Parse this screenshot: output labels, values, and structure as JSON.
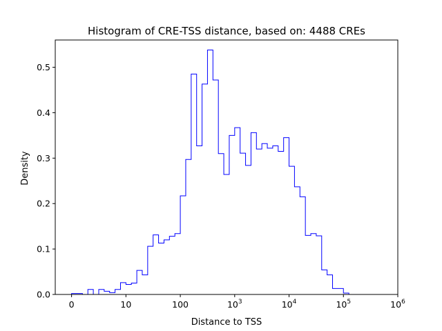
{
  "chart_data": {
    "type": "histogram",
    "title": "Histogram of CRE-TSS distance, based on: 4488 CREs",
    "xlabel": "Distance to TSS",
    "ylabel": "Density",
    "x_scale": "symlog",
    "xlim": [
      -0.3,
      6.0
    ],
    "ylim": [
      0,
      0.56
    ],
    "grid": false,
    "line_color": "#0000ff",
    "x_ticks": [
      {
        "value": 0,
        "label": "0"
      },
      {
        "value": 1,
        "label": "10"
      },
      {
        "value": 2,
        "label": "100"
      },
      {
        "value": 3,
        "label": "10",
        "sup": "3"
      },
      {
        "value": 4,
        "label": "10",
        "sup": "4"
      },
      {
        "value": 5,
        "label": "10",
        "sup": "5"
      },
      {
        "value": 6,
        "label": "10",
        "sup": "6"
      }
    ],
    "y_ticks": [
      0.0,
      0.1,
      0.2,
      0.3,
      0.4,
      0.5
    ],
    "y_tick_labels": [
      "0.0",
      "0.1",
      "0.2",
      "0.3",
      "0.4",
      "0.5"
    ],
    "bins_log10_start": 0.0,
    "bin_width_log10": 0.1,
    "densities": [
      0.002,
      0.002,
      0.0,
      0.011,
      0.0,
      0.011,
      0.007,
      0.004,
      0.011,
      0.026,
      0.022,
      0.025,
      0.053,
      0.043,
      0.106,
      0.131,
      0.113,
      0.12,
      0.128,
      0.134,
      0.217,
      0.297,
      0.485,
      0.327,
      0.463,
      0.538,
      0.472,
      0.31,
      0.264,
      0.35,
      0.367,
      0.311,
      0.284,
      0.356,
      0.32,
      0.332,
      0.322,
      0.327,
      0.315,
      0.345,
      0.282,
      0.237,
      0.215,
      0.13,
      0.134,
      0.129,
      0.054,
      0.043,
      0.013,
      0.013,
      0.003
    ]
  }
}
